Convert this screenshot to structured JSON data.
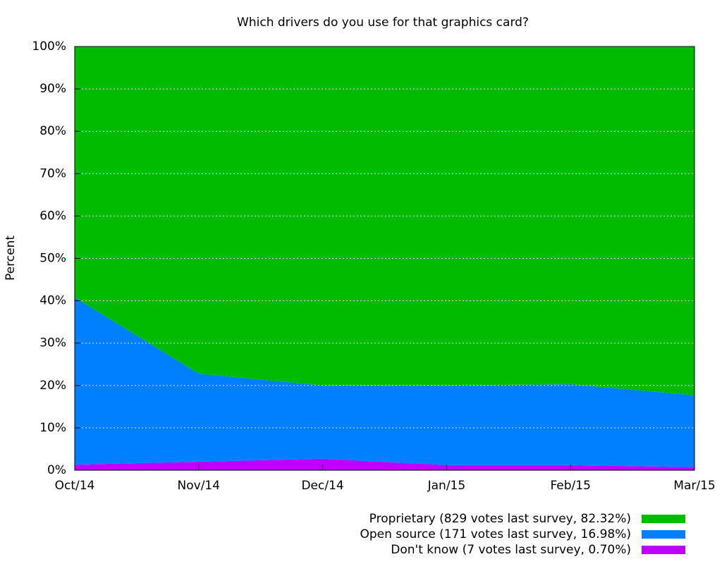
{
  "chart_data": {
    "type": "stacked_area",
    "title": "Which drivers do you use for that graphics card?",
    "ylabel": "Percent",
    "categories": [
      "Oct/14",
      "Nov/14",
      "Dec/14",
      "Jan/15",
      "Feb/15",
      "Mar/15"
    ],
    "series": [
      {
        "name": "Proprietary (829 votes last survey, 82.32%)",
        "color": "#00bb00",
        "values": [
          59.2,
          77.2,
          80.0,
          80.0,
          79.7,
          82.32
        ]
      },
      {
        "name": "Open source (171 votes last survey, 16.98%)",
        "color": "#0080ff",
        "values": [
          39.5,
          20.8,
          17.3,
          18.8,
          19.1,
          16.98
        ]
      },
      {
        "name": "Don't know (7 votes last survey, 0.70%)",
        "color": "#c000ff",
        "values": [
          1.3,
          2.0,
          2.7,
          1.2,
          1.2,
          0.7
        ]
      }
    ],
    "ylim": [
      0,
      100
    ],
    "yticks": [
      {
        "value": 0,
        "label": "0%"
      },
      {
        "value": 10,
        "label": "10%"
      },
      {
        "value": 20,
        "label": "20%"
      },
      {
        "value": 30,
        "label": "30%"
      },
      {
        "value": 40,
        "label": "40%"
      },
      {
        "value": 50,
        "label": "50%"
      },
      {
        "value": 60,
        "label": "60%"
      },
      {
        "value": 70,
        "label": "70%"
      },
      {
        "value": 80,
        "label": "80%"
      },
      {
        "value": 90,
        "label": "90%"
      },
      {
        "value": 100,
        "label": "100%"
      }
    ],
    "grid": true,
    "legend": "bottom-right"
  }
}
